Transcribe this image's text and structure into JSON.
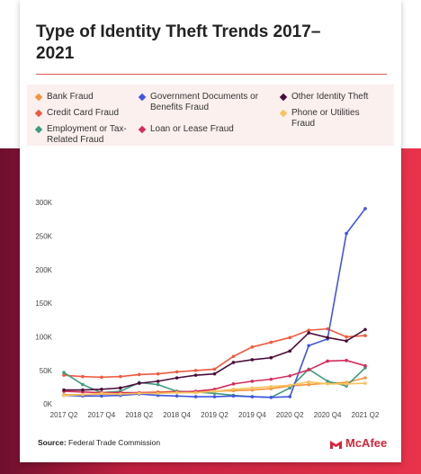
{
  "chart_data": {
    "type": "line",
    "title": "Type of Identity Theft Trends 2017–2021",
    "categories": [
      "2017 Q2",
      null,
      "2017 Q4",
      null,
      "2018 Q2",
      null,
      "2018 Q4",
      null,
      "2019 Q2",
      null,
      "2019 Q4",
      null,
      "2020 Q2",
      null,
      "2020 Q4",
      null,
      "2021 Q2"
    ],
    "series": [
      {
        "name": "Bank Fraud",
        "color": "#f7923a",
        "values": [
          15000,
          15000,
          16000,
          16000,
          18000,
          19000,
          20000,
          19000,
          20000,
          21000,
          22000,
          24000,
          28000,
          30000,
          32000,
          33000,
          40000
        ]
      },
      {
        "name": "Credit Card Fraud",
        "color": "#ee5a3f",
        "values": [
          44000,
          42000,
          41000,
          42000,
          45000,
          46000,
          49000,
          51000,
          53000,
          72000,
          86000,
          93000,
          100000,
          111000,
          113000,
          101000,
          103000
        ]
      },
      {
        "name": "Employment or Tax-Related Fraud",
        "color": "#3f9a7e",
        "values": [
          48000,
          30000,
          18000,
          20000,
          33000,
          30000,
          20000,
          19000,
          17000,
          14000,
          12000,
          11000,
          25000,
          53000,
          35000,
          28000,
          55000
        ]
      },
      {
        "name": "Government Documents or Benefits Fraud",
        "color": "#4055e0",
        "values": [
          14000,
          13000,
          13000,
          14000,
          16000,
          14000,
          13000,
          12000,
          12000,
          13000,
          12000,
          11000,
          12000,
          88000,
          98000,
          255000,
          292000
        ]
      },
      {
        "name": "Loan or Lease Fraud",
        "color": "#d62d5a",
        "values": [
          20000,
          19000,
          18000,
          18000,
          18000,
          18000,
          19000,
          20000,
          23000,
          31000,
          35000,
          38000,
          43000,
          52000,
          65000,
          66000,
          58000
        ]
      },
      {
        "name": "Other Identity Theft",
        "color": "#4a0d3a",
        "values": [
          22000,
          22000,
          23000,
          25000,
          32000,
          35000,
          40000,
          44000,
          46000,
          63000,
          67000,
          70000,
          80000,
          107000,
          100000,
          95000,
          112000
        ]
      },
      {
        "name": "Phone or Utilities Fraud",
        "color": "#f7c35d",
        "values": [
          14000,
          15000,
          17000,
          16000,
          17000,
          17000,
          18000,
          18000,
          20000,
          23000,
          25000,
          27000,
          29000,
          34000,
          31000,
          31000,
          32000
        ]
      }
    ],
    "ylim": [
      0,
      300000
    ],
    "yticks": [
      {
        "value": 0,
        "label": "0K"
      },
      {
        "value": 50000,
        "label": "50K"
      },
      {
        "value": 100000,
        "label": "100K"
      },
      {
        "value": 150000,
        "label": "150K"
      },
      {
        "value": 200000,
        "label": "200K"
      },
      {
        "value": 250000,
        "label": "250K"
      },
      {
        "value": 300000,
        "label": "300K"
      }
    ],
    "grid": false,
    "source_label": "Source:",
    "source": "Federal Trade Commission",
    "brand": "McAfee"
  }
}
